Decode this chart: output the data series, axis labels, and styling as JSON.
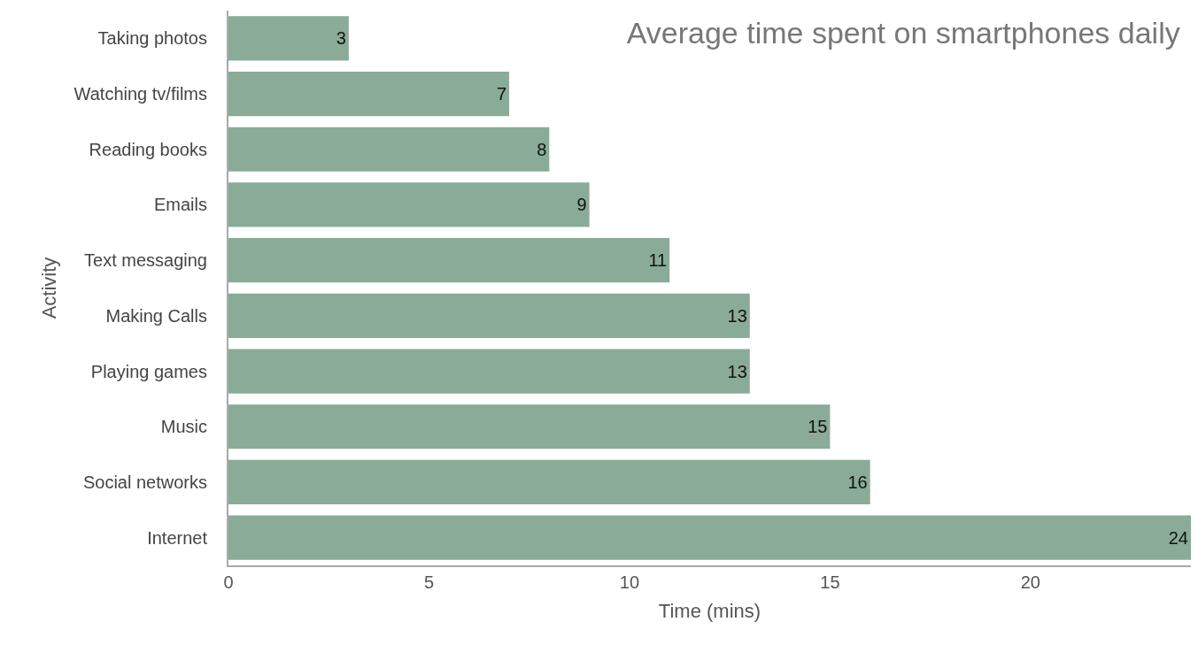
{
  "chart_data": {
    "type": "bar",
    "orientation": "horizontal",
    "title": "Average time spent on smartphones daily",
    "xlabel": "Time (mins)",
    "ylabel": "Activity",
    "categories": [
      "Taking photos",
      "Watching tv/films",
      "Reading books",
      "Emails",
      "Text messaging",
      "Making Calls",
      "Playing games",
      "Music",
      "Social networks",
      "Internet"
    ],
    "values": [
      3,
      7,
      8,
      9,
      11,
      13,
      13,
      15,
      16,
      24
    ],
    "color": "#8aab98",
    "xlim": [
      0,
      24
    ],
    "xticks": [
      0,
      5,
      10,
      15,
      20
    ],
    "data_labels": true,
    "legend": false
  }
}
